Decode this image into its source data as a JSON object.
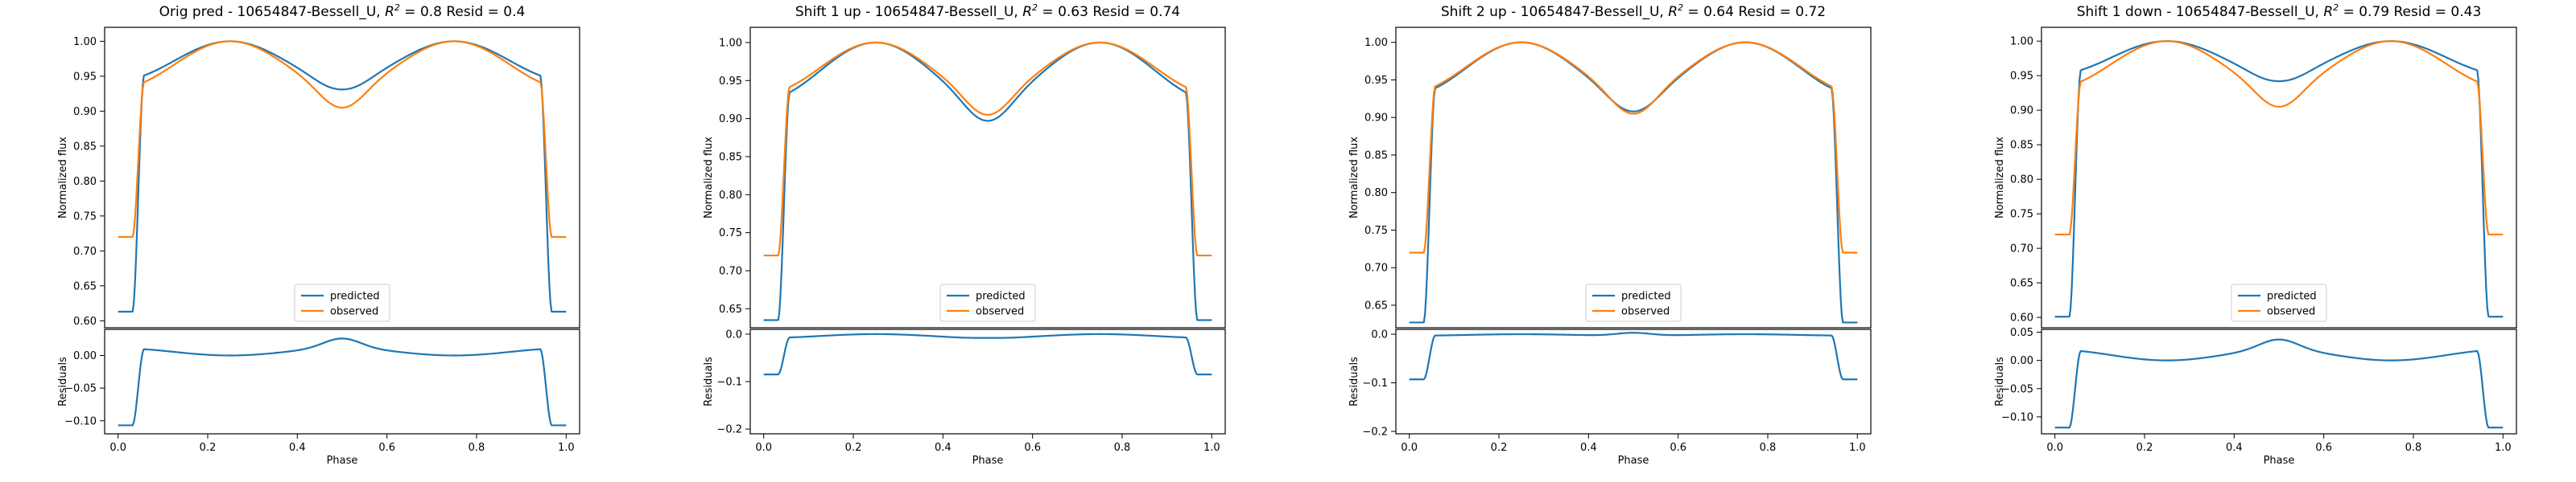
{
  "figure": {
    "background": "#ffffff",
    "colors": {
      "predicted": "#1f77b4",
      "observed": "#ff7f0e",
      "axes": "#000000"
    }
  },
  "chart_data": [
    {
      "type": "line",
      "title_prefix": "Orig pred - 10654847-Bessell_U, ",
      "r2_text": "R",
      "r2_sup": "2",
      "title_suffix": " = 0.8 Resid = 0.4",
      "xlabel": "Phase",
      "top": {
        "ylabel": "Normalized flux",
        "ylim": [
          0.59,
          1.02
        ],
        "yticks": [
          "0.60",
          "0.65",
          "0.70",
          "0.75",
          "0.80",
          "0.85",
          "0.90",
          "0.95",
          "1.00"
        ],
        "model": {
          "pred": {
            "base": 0.613,
            "plateau": 0.944,
            "max": 1.0,
            "mid": 0.931
          },
          "obs": {
            "base": 0.72,
            "plateau": 0.933,
            "max": 1.0,
            "mid": 0.905
          }
        }
      },
      "bottom": {
        "ylabel": "Residuals",
        "ylim": [
          -0.12,
          0.04
        ],
        "yticks": [
          "−0.10",
          "−0.05",
          "0.00"
        ]
      },
      "xlim": [
        -0.03,
        1.03
      ],
      "xticks": [
        "0.0",
        "0.2",
        "0.4",
        "0.6",
        "0.8",
        "1.0"
      ],
      "legend": {
        "position": "lower center",
        "items": [
          "predicted",
          "observed"
        ]
      },
      "series": [
        {
          "name": "predicted"
        },
        {
          "name": "observed"
        }
      ]
    },
    {
      "type": "line",
      "title_prefix": "Shift 1 up - 10654847-Bessell_U, ",
      "r2_text": "R",
      "r2_sup": "2",
      "title_suffix": " = 0.63 Resid = 0.74",
      "xlabel": "Phase",
      "top": {
        "ylabel": "Normalized flux",
        "ylim": [
          0.625,
          1.02
        ],
        "yticks": [
          "0.65",
          "0.70",
          "0.75",
          "0.80",
          "0.85",
          "0.90",
          "0.95",
          "1.00"
        ],
        "model": {
          "pred": {
            "base": 0.635,
            "plateau": 0.925,
            "max": 1.0,
            "mid": 0.897
          },
          "obs": {
            "base": 0.72,
            "plateau": 0.933,
            "max": 1.0,
            "mid": 0.905
          }
        }
      },
      "bottom": {
        "ylabel": "Residuals",
        "ylim": [
          -0.21,
          0.01
        ],
        "yticks": [
          "−0.2",
          "−0.1",
          "0.0"
        ]
      },
      "xlim": [
        -0.03,
        1.03
      ],
      "xticks": [
        "0.0",
        "0.2",
        "0.4",
        "0.6",
        "0.8",
        "1.0"
      ],
      "legend": {
        "position": "lower center",
        "items": [
          "predicted",
          "observed"
        ]
      },
      "series": [
        {
          "name": "predicted"
        },
        {
          "name": "observed"
        }
      ]
    },
    {
      "type": "line",
      "title_prefix": "Shift 2 up - 10654847-Bessell_U, ",
      "r2_text": "R",
      "r2_sup": "2",
      "title_suffix": " = 0.64 Resid = 0.72",
      "xlabel": "Phase",
      "top": {
        "ylabel": "Normalized flux",
        "ylim": [
          0.62,
          1.02
        ],
        "yticks": [
          "0.65",
          "0.70",
          "0.75",
          "0.80",
          "0.85",
          "0.90",
          "0.95",
          "1.00"
        ],
        "model": {
          "pred": {
            "base": 0.627,
            "plateau": 0.93,
            "max": 1.0,
            "mid": 0.908
          },
          "obs": {
            "base": 0.72,
            "plateau": 0.933,
            "max": 1.0,
            "mid": 0.905
          }
        }
      },
      "bottom": {
        "ylabel": "Residuals",
        "ylim": [
          -0.205,
          0.01
        ],
        "yticks": [
          "−0.2",
          "−0.1",
          "0.0"
        ]
      },
      "xlim": [
        -0.03,
        1.03
      ],
      "xticks": [
        "0.0",
        "0.2",
        "0.4",
        "0.6",
        "0.8",
        "1.0"
      ],
      "legend": {
        "position": "lower center",
        "items": [
          "predicted",
          "observed"
        ]
      },
      "series": [
        {
          "name": "predicted"
        },
        {
          "name": "observed"
        }
      ]
    },
    {
      "type": "line",
      "title_prefix": "Shift 1 down - 10654847-Bessell_U, ",
      "r2_text": "R",
      "r2_sup": "2",
      "title_suffix": " = 0.79 Resid = 0.43",
      "xlabel": "Phase",
      "top": {
        "ylabel": "Normalized flux",
        "ylim": [
          0.585,
          1.02
        ],
        "yticks": [
          "0.60",
          "0.65",
          "0.70",
          "0.75",
          "0.80",
          "0.85",
          "0.90",
          "0.95",
          "1.00"
        ],
        "model": {
          "pred": {
            "base": 0.601,
            "plateau": 0.952,
            "max": 1.0,
            "mid": 0.942
          },
          "obs": {
            "base": 0.72,
            "plateau": 0.933,
            "max": 1.0,
            "mid": 0.905
          }
        }
      },
      "bottom": {
        "ylabel": "Residuals",
        "ylim": [
          -0.13,
          0.055
        ],
        "yticks": [
          "−0.10",
          "−0.05",
          "0.00",
          "0.05"
        ]
      },
      "xlim": [
        -0.03,
        1.03
      ],
      "xticks": [
        "0.0",
        "0.2",
        "0.4",
        "0.6",
        "0.8",
        "1.0"
      ],
      "legend": {
        "position": "lower center",
        "items": [
          "predicted",
          "observed"
        ]
      },
      "series": [
        {
          "name": "predicted"
        },
        {
          "name": "observed"
        }
      ]
    }
  ]
}
